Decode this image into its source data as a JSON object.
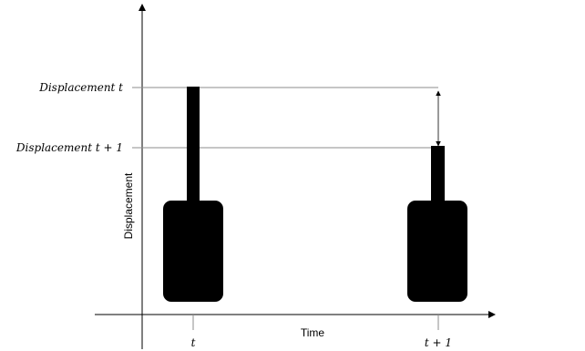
{
  "diagram": {
    "y_axis_label": "Displacement",
    "x_axis_label": "Time",
    "levels": [
      {
        "label": "Displacement t"
      },
      {
        "label": "Displacement t + 1"
      }
    ],
    "time_ticks": [
      {
        "label": "t"
      },
      {
        "label": "t + 1"
      }
    ]
  }
}
